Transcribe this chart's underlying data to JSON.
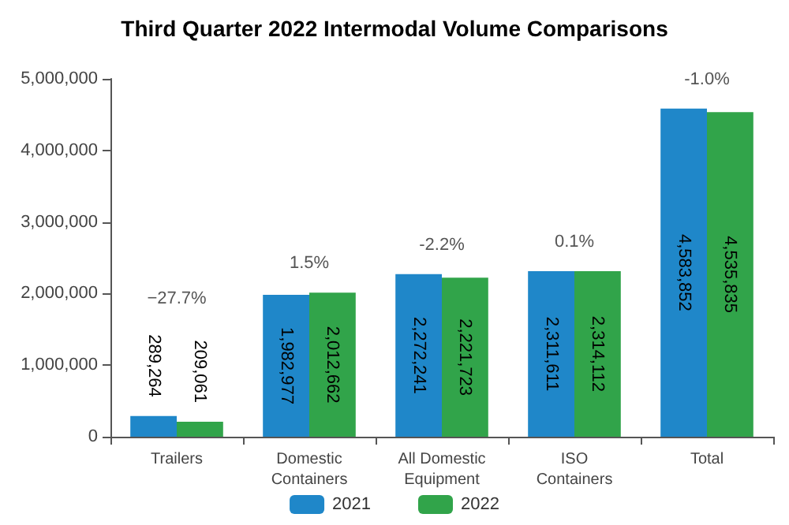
{
  "chart_data": {
    "type": "bar",
    "title": "Third Quarter 2022 Intermodal Volume Comparisons",
    "categories": [
      "Trailers",
      "Domestic\nContainers",
      "All Domestic\nEquipment",
      "ISO\nContainers",
      "Total"
    ],
    "series": [
      {
        "name": "2021",
        "color": "#1f87c9",
        "values": [
          289264,
          1982977,
          2272241,
          2311611,
          4583852
        ],
        "value_labels": [
          "289,264",
          "1,982,977",
          "2,272,241",
          "2,311,611",
          "4,583,852"
        ]
      },
      {
        "name": "2022",
        "color": "#31a44a",
        "values": [
          209061,
          2012662,
          2221723,
          2314112,
          4535835
        ],
        "value_labels": [
          "209,061",
          "2,012,662",
          "2,221,723",
          "2,314,112",
          "4,535,835"
        ]
      }
    ],
    "ylim": [
      0,
      5000000
    ],
    "yticks": [
      0,
      {
        "value": 1000000,
        "label": "1,000,000"
      },
      {
        "value": 2000000,
        "label": "2,000,000"
      },
      {
        "value": 3000000,
        "label": "3,000,000"
      },
      {
        "value": 4000000,
        "label": "4,000,000"
      },
      {
        "value": 5000000,
        "label": "5,000,000"
      }
    ],
    "grid": false,
    "legend": "bottom",
    "annotations": [
      "−27.7%",
      "1.5%",
      "-2.2%",
      "0.1%",
      "-1.0%"
    ]
  }
}
